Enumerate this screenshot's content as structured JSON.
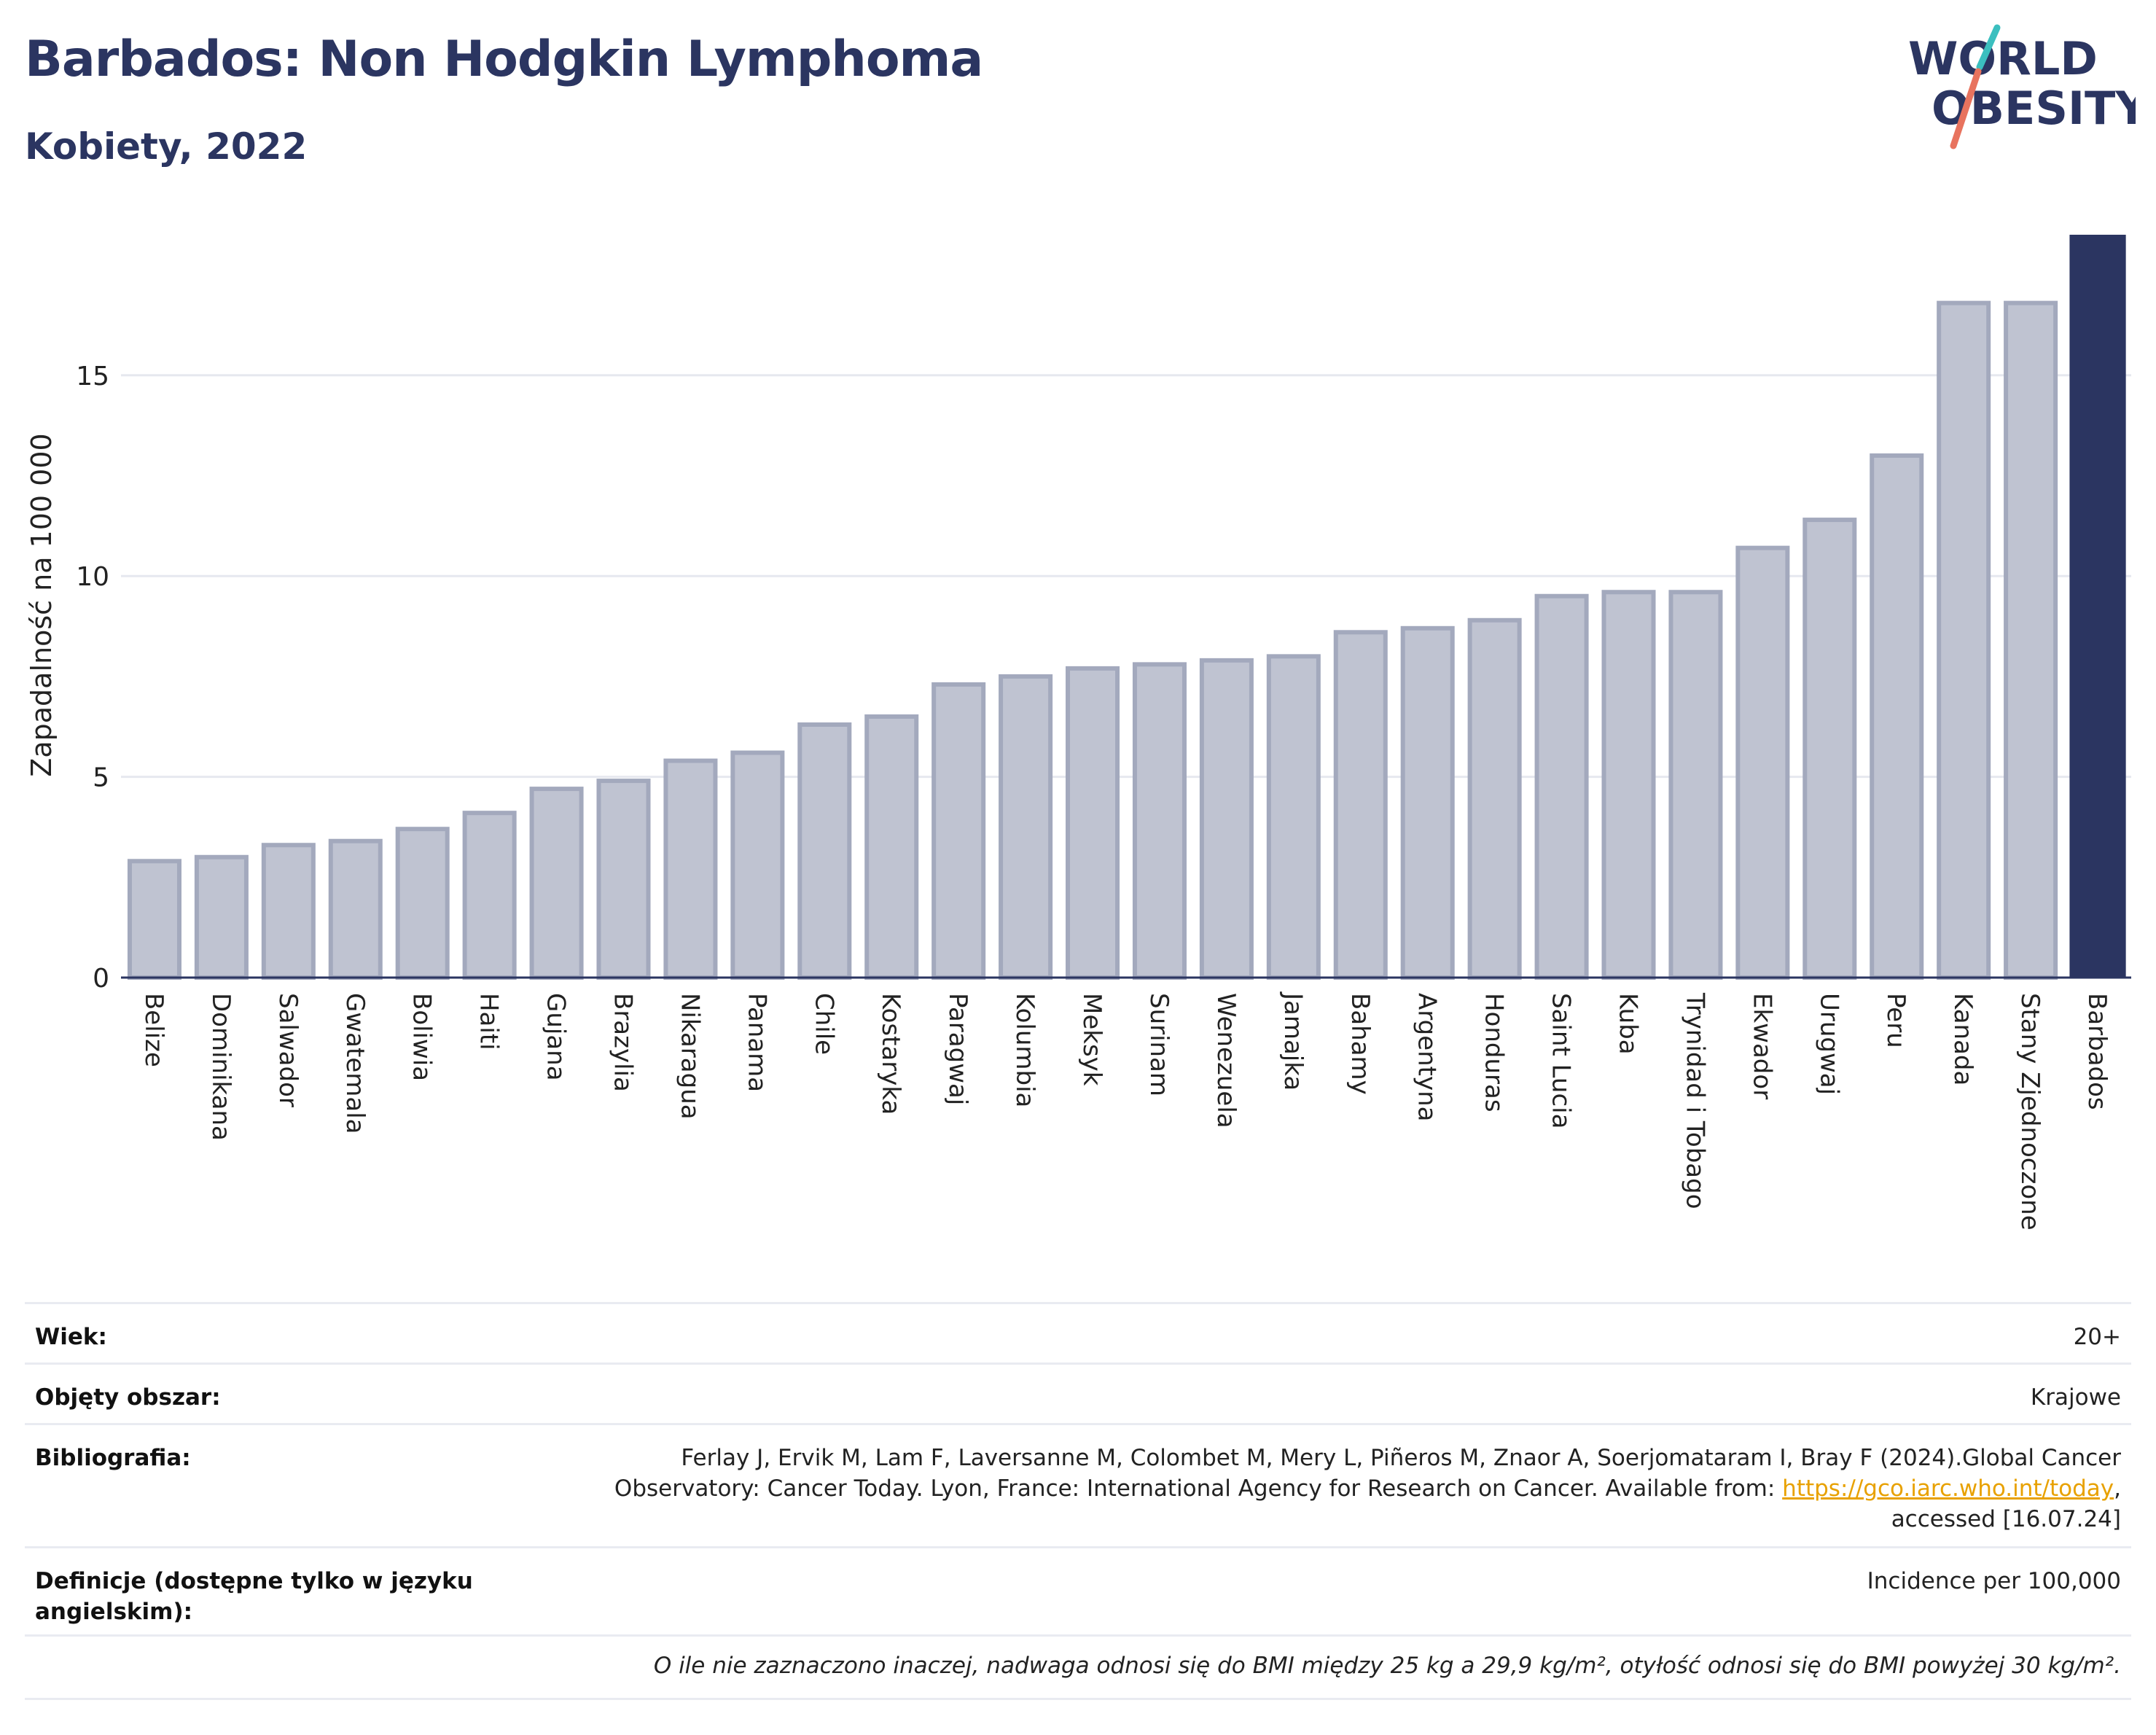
{
  "header": {
    "title": "Barbados: Non Hodgkin Lymphoma",
    "subtitle": "Kobiety, 2022",
    "logo_line1": "WORLD",
    "logo_line2": "OBESITY"
  },
  "colors": {
    "title": "#2b3561",
    "bar_default": "#bfc3d1",
    "bar_default_stroke": "#a3a9bd",
    "bar_highlight": "#2b3561",
    "grid": "#e6e8ef",
    "logo_teal": "#3bbfbf",
    "logo_coral": "#e8735e",
    "link": "#e8a100"
  },
  "chart_data": {
    "type": "bar",
    "ylabel": "Zapadalność na 100 000",
    "xlabel": "",
    "ylim": [
      0,
      18.5
    ],
    "yticks": [
      0,
      5,
      10,
      15
    ],
    "grid": true,
    "highlight": "Barbados",
    "categories": [
      "Belize",
      "Dominikana",
      "Salwador",
      "Gwatemala",
      "Boliwia",
      "Haiti",
      "Gujana",
      "Brazylia",
      "Nikaragua",
      "Panama",
      "Chile",
      "Kostaryka",
      "Paragwaj",
      "Kolumbia",
      "Meksyk",
      "Surinam",
      "Wenezuela",
      "Jamajka",
      "Bahamy",
      "Argentyna",
      "Honduras",
      "Saint Lucia",
      "Kuba",
      "Trynidad i Tobago",
      "Ekwador",
      "Urugwaj",
      "Peru",
      "Kanada",
      "Stany Zjednoczone",
      "Barbados"
    ],
    "values": [
      2.9,
      3.0,
      3.3,
      3.4,
      3.7,
      4.1,
      4.7,
      4.9,
      5.4,
      5.6,
      6.3,
      6.5,
      7.3,
      7.5,
      7.7,
      7.8,
      7.9,
      8.0,
      8.6,
      8.7,
      8.9,
      9.5,
      9.6,
      9.6,
      10.7,
      11.4,
      13.0,
      16.8,
      16.8,
      18.5
    ]
  },
  "meta": {
    "age_label": "Wiek:",
    "age_value": "20+",
    "area_label": "Objęty obszar:",
    "area_value": "Krajowe",
    "bib_label": "Bibliografia:",
    "bib_line1": "Ferlay J, Ervik M, Lam F, Laversanne M, Colombet M, Mery L, Piñeros M, Znaor A, Soerjomataram I, Bray F (2024).Global Cancer",
    "bib_line2_pre": "Observatory: Cancer Today. Lyon, France: International Agency for Research on Cancer. Available from: ",
    "bib_link": "https://gco.iarc.who.int/today",
    "bib_line2_post": ",",
    "bib_line3": "accessed [16.07.24]",
    "def_label": "Definicje (dostępne tylko w języku angielskim):",
    "def_value": "Incidence per 100,000",
    "note": "O ile nie zaznaczono inaczej, nadwaga odnosi się do BMI między 25 kg a 29,9 kg/m², otyłość odnosi się do BMI powyżej 30 kg/m²."
  }
}
